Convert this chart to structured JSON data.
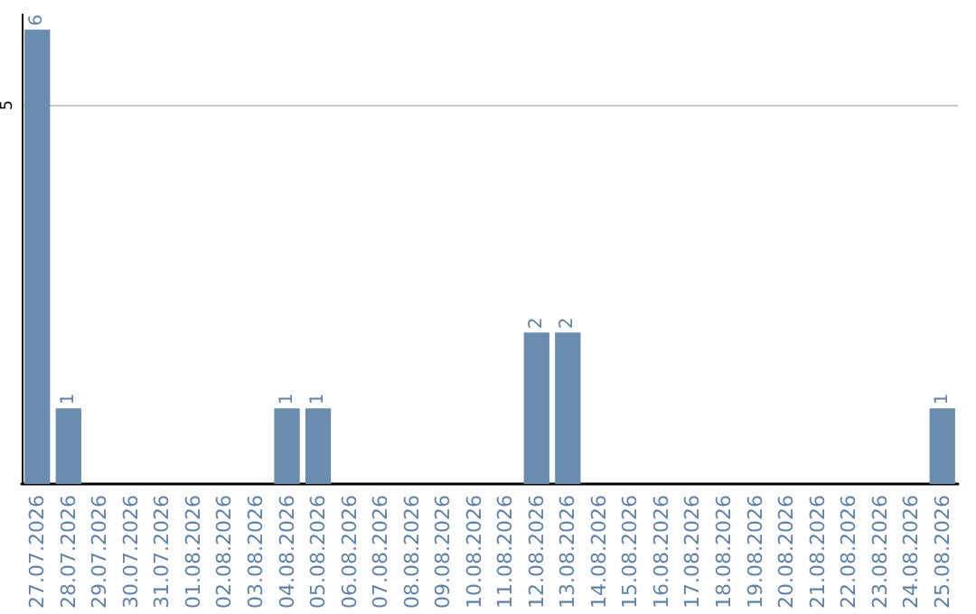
{
  "chart_data": {
    "type": "bar",
    "categories": [
      "27.07.2026",
      "28.07.2026",
      "29.07.2026",
      "30.07.2026",
      "31.07.2026",
      "01.08.2026",
      "02.08.2026",
      "03.08.2026",
      "04.08.2026",
      "05.08.2026",
      "06.08.2026",
      "07.08.2026",
      "08.08.2026",
      "09.08.2026",
      "10.08.2026",
      "11.08.2026",
      "12.08.2026",
      "13.08.2026",
      "14.08.2026",
      "15.08.2026",
      "16.08.2026",
      "17.08.2026",
      "18.08.2026",
      "19.08.2026",
      "20.08.2026",
      "21.08.2026",
      "22.08.2026",
      "23.08.2026",
      "24.08.2026",
      "25.08.2026"
    ],
    "values": [
      6,
      1,
      0,
      0,
      0,
      0,
      0,
      0,
      1,
      1,
      0,
      0,
      0,
      0,
      0,
      0,
      2,
      2,
      0,
      0,
      0,
      0,
      0,
      0,
      0,
      0,
      0,
      0,
      0,
      1
    ],
    "value_labels": [
      "6",
      "1",
      null,
      null,
      null,
      null,
      null,
      null,
      "1",
      "1",
      null,
      null,
      null,
      null,
      null,
      null,
      "2",
      "2",
      null,
      null,
      null,
      null,
      null,
      null,
      null,
      null,
      null,
      null,
      null,
      "1"
    ],
    "color": "#6a8caf",
    "ylim": [
      0,
      6.2
    ],
    "yticks": [
      5
    ],
    "grid": "y"
  }
}
